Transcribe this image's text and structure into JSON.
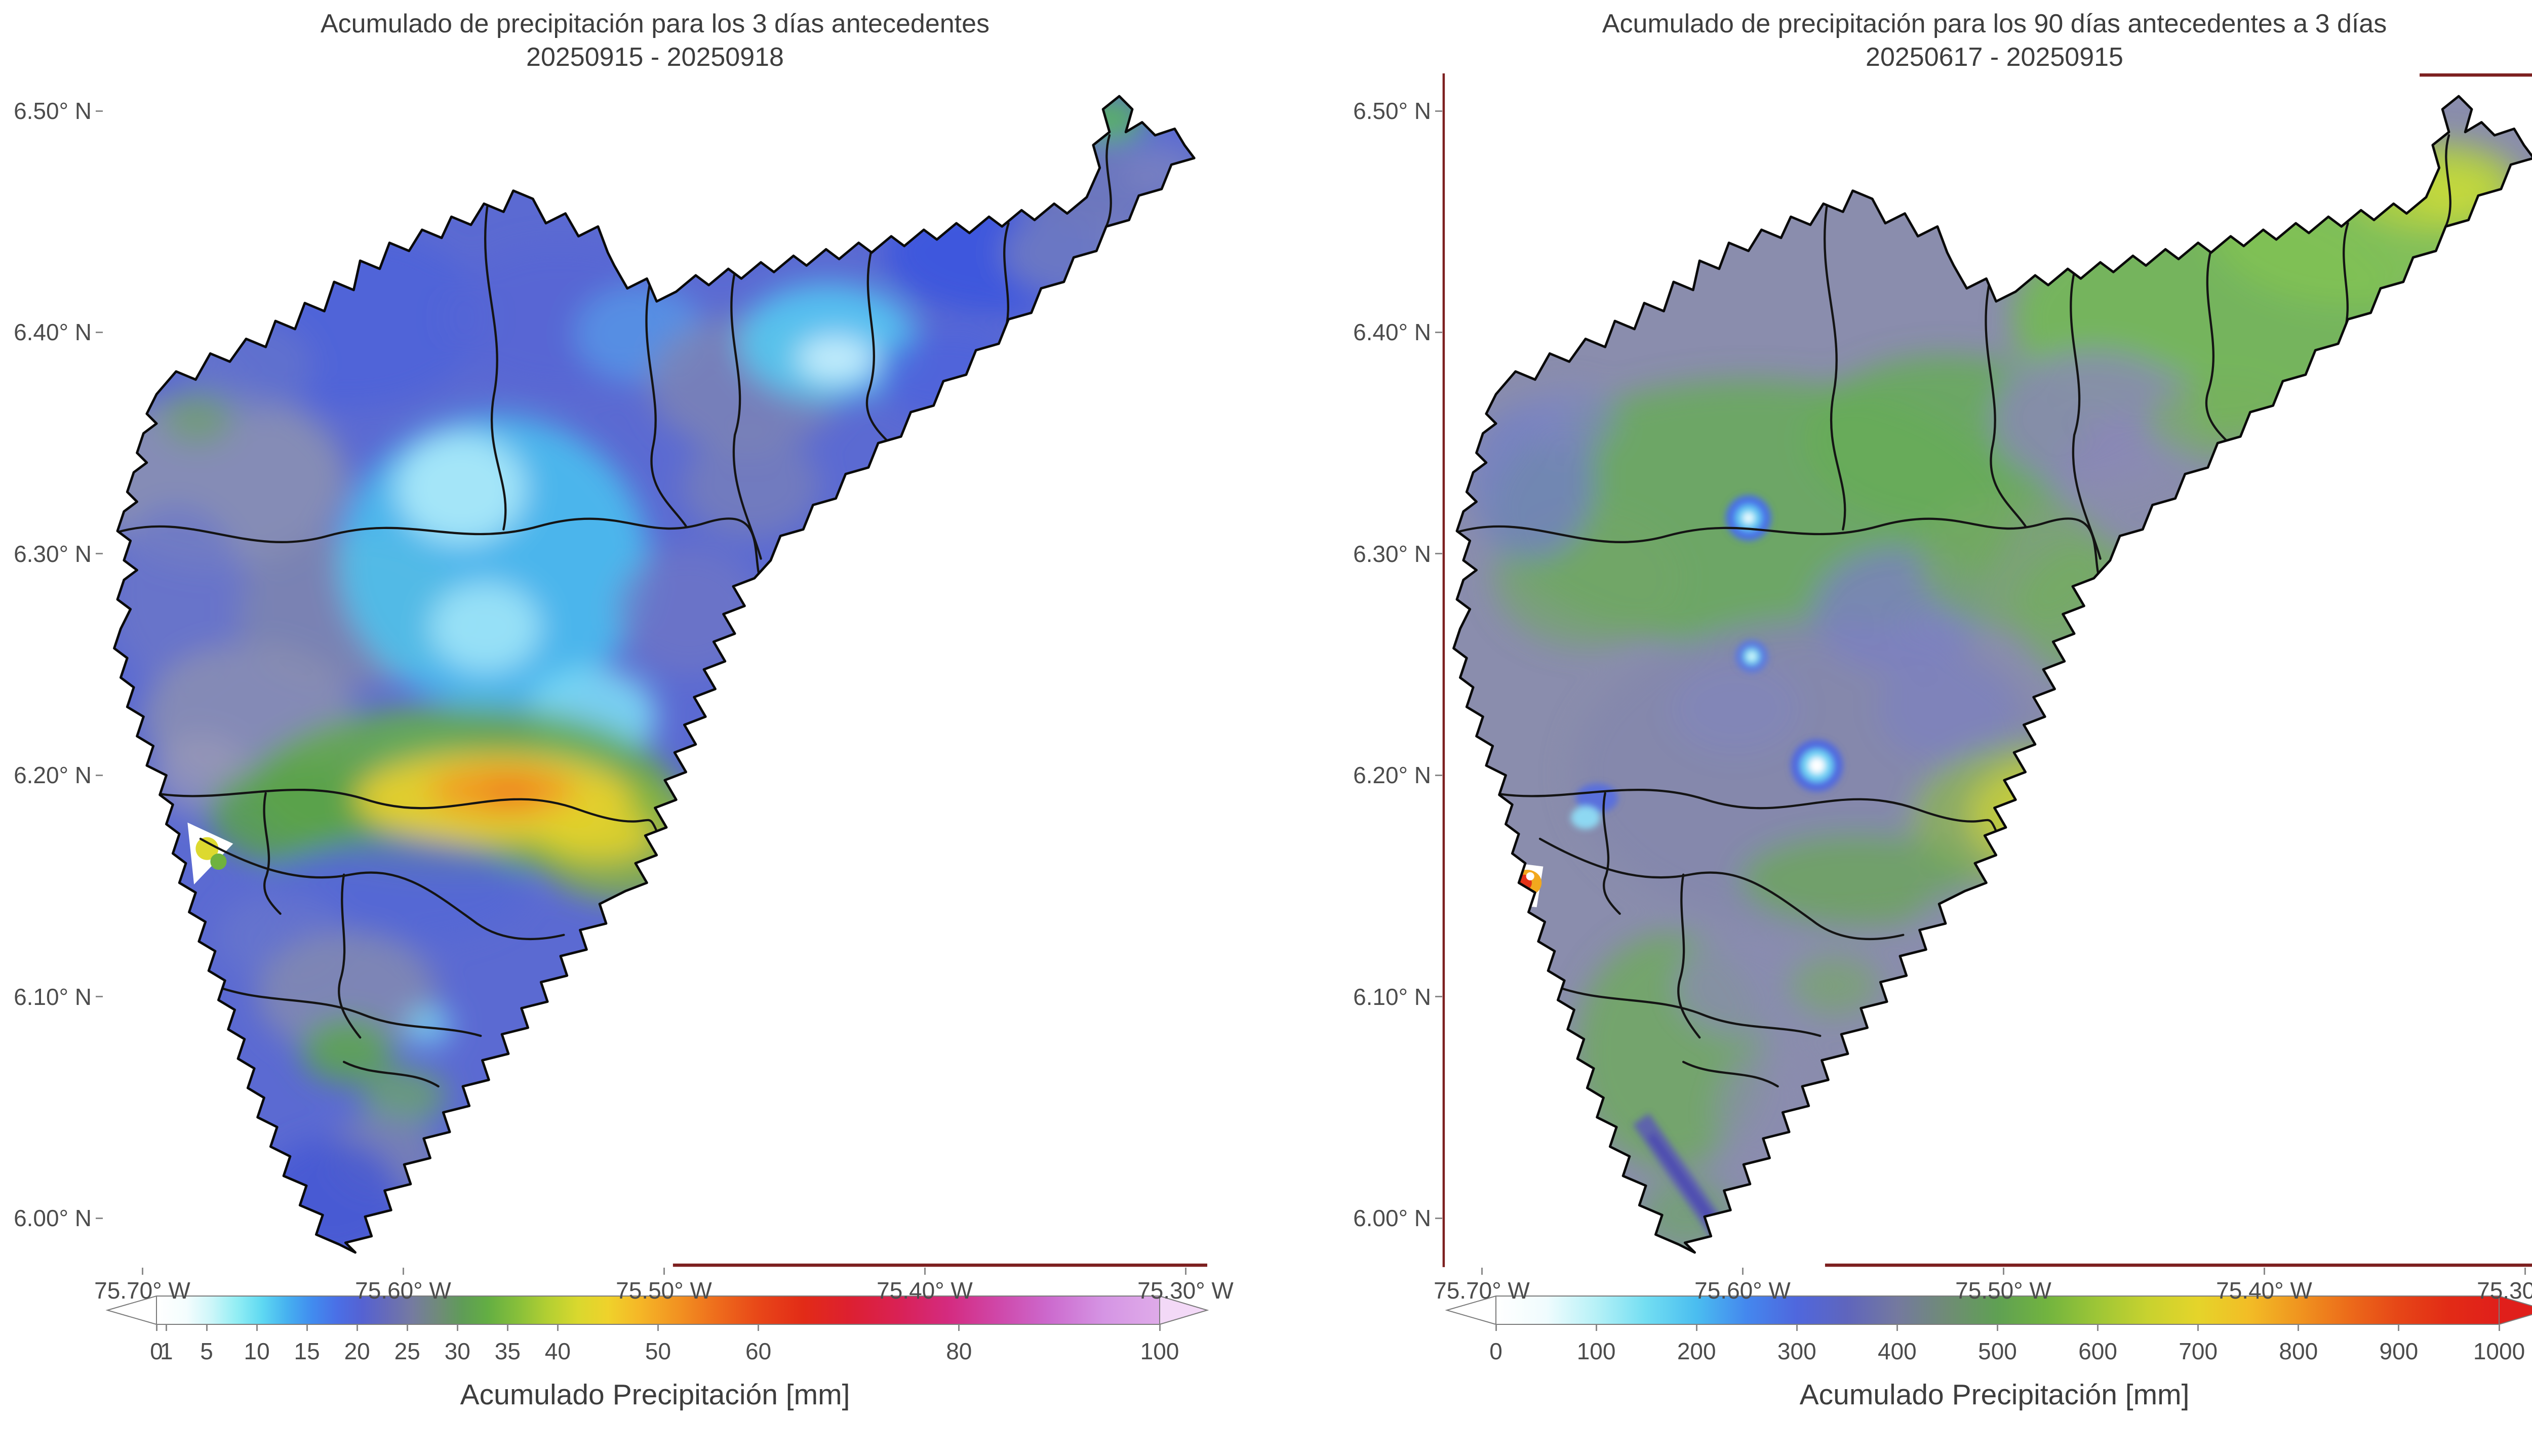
{
  "figure": {
    "background": "#ffffff",
    "text_color": "#3d3d3d",
    "accent_boundary_color": "#141414",
    "spine_accent_color": "#7d2020"
  },
  "panels": [
    {
      "id": "left",
      "title": "Acumulado de precipitación para los 3 días antecedentes",
      "subtitle": "20250915 - 20250918",
      "y_tick_labels": [
        "6.50° N",
        "6.40° N",
        "6.30° N",
        "6.20° N",
        "6.10° N",
        "6.00° N"
      ],
      "x_tick_labels": [
        "75.70° W",
        "75.60° W",
        "75.50° W",
        "75.40° W",
        "75.30° W"
      ],
      "colorbar": {
        "label": "Acumulado Precipitación [mm]",
        "tick_labels": [
          "0",
          "1",
          "5",
          "10",
          "15",
          "20",
          "25",
          "30",
          "35",
          "40",
          "50",
          "60",
          "80",
          "100"
        ],
        "tick_values": [
          0,
          1,
          5,
          10,
          15,
          20,
          25,
          30,
          35,
          40,
          50,
          60,
          80,
          100
        ],
        "vmin": 0,
        "vmax": 100,
        "extend": "both",
        "under_color": "#ffffff",
        "over_color": "#f3d9f7",
        "stops": [
          [
            0.0,
            "#ffffff"
          ],
          [
            0.03,
            "#f4fdfe"
          ],
          [
            0.055,
            "#ccf6f9"
          ],
          [
            0.08,
            "#92eef4"
          ],
          [
            0.105,
            "#5fd9f2"
          ],
          [
            0.13,
            "#46b1f0"
          ],
          [
            0.155,
            "#418cef"
          ],
          [
            0.18,
            "#4a6fe6"
          ],
          [
            0.205,
            "#5562d2"
          ],
          [
            0.23,
            "#666bb9"
          ],
          [
            0.255,
            "#757ba0"
          ],
          [
            0.28,
            "#708a7b"
          ],
          [
            0.305,
            "#5f9c57"
          ],
          [
            0.33,
            "#63ae43"
          ],
          [
            0.36,
            "#87bf3a"
          ],
          [
            0.39,
            "#b3cf32"
          ],
          [
            0.42,
            "#d9d82e"
          ],
          [
            0.45,
            "#efd22b"
          ],
          [
            0.48,
            "#f5b827"
          ],
          [
            0.52,
            "#f29221"
          ],
          [
            0.56,
            "#ee6b1c"
          ],
          [
            0.6,
            "#e84718"
          ],
          [
            0.645,
            "#e22b17"
          ],
          [
            0.69,
            "#dd2030"
          ],
          [
            0.74,
            "#d92155"
          ],
          [
            0.79,
            "#d42b80"
          ],
          [
            0.84,
            "#cf48aa"
          ],
          [
            0.89,
            "#cc6ace"
          ],
          [
            0.945,
            "#d595e4"
          ],
          [
            1.0,
            "#dfabe9"
          ]
        ]
      }
    },
    {
      "id": "right",
      "title": "Acumulado de precipitación para los 90 días antecedentes a 3 días",
      "subtitle": "20250617 - 20250915",
      "y_tick_labels": [
        "6.50° N",
        "6.40° N",
        "6.30° N",
        "6.20° N",
        "6.10° N",
        "6.00° N"
      ],
      "x_tick_labels": [
        "75.70° W",
        "75.60° W",
        "75.50° W",
        "75.40° W",
        "75.30° W"
      ],
      "colorbar": {
        "label": "Acumulado Precipitación [mm]",
        "tick_labels": [
          "0",
          "100",
          "200",
          "300",
          "400",
          "500",
          "600",
          "700",
          "800",
          "900",
          "1000"
        ],
        "tick_values": [
          0,
          100,
          200,
          300,
          400,
          500,
          600,
          700,
          800,
          900,
          1000
        ],
        "vmin": 0,
        "vmax": 1000,
        "extend": "both",
        "under_color": "#ffffff",
        "over_color": "#e01f1b",
        "stops": [
          [
            0.0,
            "#ffffff"
          ],
          [
            0.05,
            "#f0fcfe"
          ],
          [
            0.1,
            "#b6f1f7"
          ],
          [
            0.15,
            "#72def2"
          ],
          [
            0.2,
            "#4abdf0"
          ],
          [
            0.25,
            "#4487ee"
          ],
          [
            0.3,
            "#4f67dd"
          ],
          [
            0.35,
            "#5f65bd"
          ],
          [
            0.4,
            "#74799f"
          ],
          [
            0.45,
            "#6f8c75"
          ],
          [
            0.5,
            "#5fa053"
          ],
          [
            0.55,
            "#72b43f"
          ],
          [
            0.6,
            "#9ec636"
          ],
          [
            0.65,
            "#c8d22f"
          ],
          [
            0.7,
            "#e5d42a"
          ],
          [
            0.75,
            "#f2bd26"
          ],
          [
            0.8,
            "#f0951f"
          ],
          [
            0.85,
            "#ec6b1a"
          ],
          [
            0.9,
            "#e64617"
          ],
          [
            0.95,
            "#e22b16"
          ],
          [
            1.0,
            "#e01f1b"
          ]
        ]
      }
    }
  ],
  "chart_data": [
    {
      "type": "heatmap",
      "variant": "geospatial precipitation accumulation raster over watershed with municipal boundaries",
      "title": "Acumulado de precipitación para los 3 días antecedentes",
      "subtitle_date_range": "20250915 - 20250918",
      "xlabel": "",
      "ylabel": "",
      "x_ticks": [
        "75.70° W",
        "75.60° W",
        "75.50° W",
        "75.40° W",
        "75.30° W"
      ],
      "y_ticks": [
        "6.50° N",
        "6.40° N",
        "6.30° N",
        "6.20° N",
        "6.10° N",
        "6.00° N"
      ],
      "x_range_deg_w": [
        75.72,
        75.24
      ],
      "y_range_deg_n": [
        5.98,
        6.52
      ],
      "colorbar": {
        "label": "Acumulado Precipitación [mm]",
        "ticks": [
          0,
          1,
          5,
          10,
          15,
          20,
          25,
          30,
          35,
          40,
          50,
          60,
          80,
          100
        ],
        "min": 0,
        "max": 100,
        "extend": "both"
      },
      "notable_values_mm": [
        {
          "approx_location": "6.19° N, 75.52° W",
          "value": "35–50 (yellow-orange maximum blob)"
        },
        {
          "approx_location": "6.15–6.20° N band",
          "value": "25–35 (green)"
        },
        {
          "approx_location": "6.30–6.36° N, 75.55–75.60° W",
          "value": "5–10 (bright cyan minimum)"
        },
        {
          "approx_location": "NE arm 6.42° N, 75.42° W",
          "value": "5–15 (cyan/blue)"
        },
        {
          "approx_location": "most of basin",
          "value": "10–25 (blue to slate)"
        },
        {
          "approx_location": "southern lobe 6.02° N",
          "value": "10–20 (blue with slate patches)"
        }
      ]
    },
    {
      "type": "heatmap",
      "variant": "geospatial precipitation accumulation raster over watershed with municipal boundaries",
      "title": "Acumulado de precipitación para los 90 días antecedentes a 3 días",
      "subtitle_date_range": "20250617 - 20250915",
      "xlabel": "",
      "ylabel": "",
      "x_ticks": [
        "75.70° W",
        "75.60° W",
        "75.50° W",
        "75.40° W",
        "75.30° W"
      ],
      "y_ticks": [
        "6.50° N",
        "6.40° N",
        "6.30° N",
        "6.20° N",
        "6.10° N",
        "6.00° N"
      ],
      "x_range_deg_w": [
        75.72,
        75.24
      ],
      "y_range_deg_n": [
        5.98,
        6.52
      ],
      "colorbar": {
        "label": "Acumulado Precipitación [mm]",
        "ticks": [
          0,
          100,
          200,
          300,
          400,
          500,
          600,
          700,
          800,
          900,
          1000
        ],
        "min": 0,
        "max": 1000,
        "extend": "both"
      },
      "notable_values_mm": [
        {
          "approx_location": "6.15° N, 75.68° W (west edge)",
          "value": "900–1000 (small red maximum spot)"
        },
        {
          "approx_location": "NE arm 6.40–6.50° N",
          "value": "550–700 (green to yellow-green, brightest near tip)"
        },
        {
          "approx_location": "6.17° N, 75.48° W",
          "value": "600–700 (yellow-green patch)"
        },
        {
          "approx_location": "central valley",
          "value": "380–450 (slate blue-gray)"
        },
        {
          "approx_location": "isolated dots 6.20–6.32° N, 75.56–75.60° W",
          "value": "100–250 (white/cyan low spots)"
        },
        {
          "approx_location": "northern hills and southern lobe",
          "value": "500–600 (green)"
        }
      ]
    }
  ]
}
